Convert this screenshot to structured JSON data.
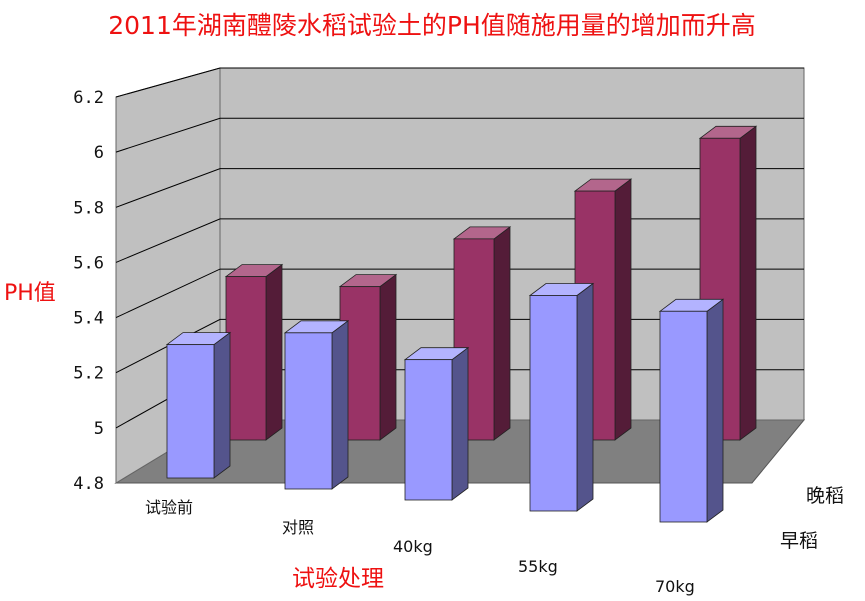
{
  "chart_data": {
    "type": "bar",
    "title": "2011年湖南醴陵水稻试验土的PH值随施用量的增加而升高",
    "xlabel": "试验处理",
    "ylabel": "PH值",
    "categories": [
      "试验前",
      "对照",
      "40kg",
      "55kg",
      "70kg"
    ],
    "series": [
      {
        "name": "早稻",
        "values": [
          5.32,
          5.37,
          5.28,
          5.52,
          5.47
        ]
      },
      {
        "name": "晚稻",
        "values": [
          5.45,
          5.41,
          5.6,
          5.79,
          6.0
        ]
      }
    ],
    "ylim": [
      4.8,
      6.2
    ],
    "yticks": [
      "4.8",
      "5",
      "5.2",
      "5.4",
      "5.6",
      "5.8",
      "6",
      "6.2"
    ],
    "grid": true,
    "colors": {
      "series_front": "#9999ff",
      "series_back": "#993366",
      "wall": "#c0c0c0",
      "floor": "#808080",
      "title": "#ee1111"
    }
  }
}
